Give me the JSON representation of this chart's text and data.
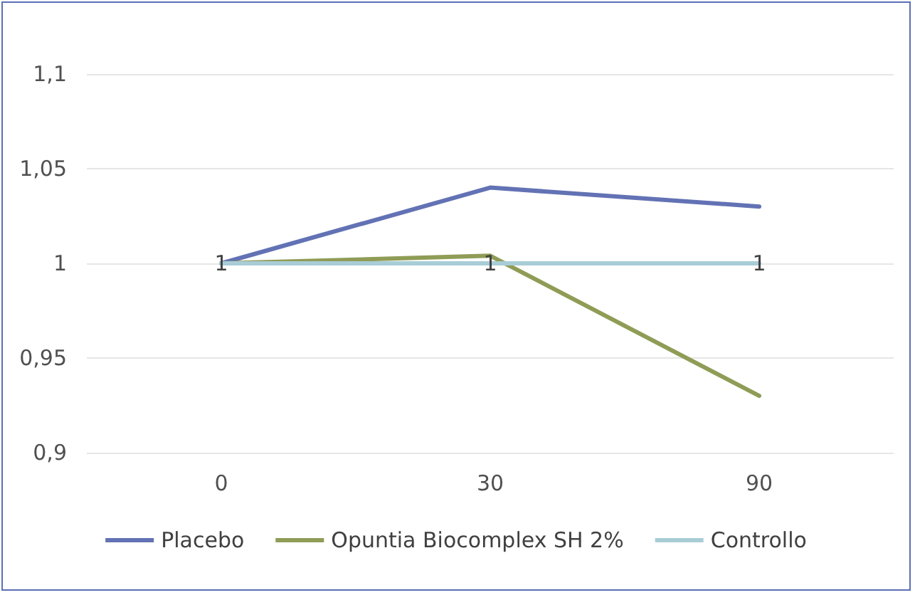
{
  "chart_data": {
    "type": "line",
    "categories": [
      "0",
      "30",
      "90"
    ],
    "series": [
      {
        "name": "Placebo",
        "color": "#6272b4",
        "values": [
          1,
          1.04,
          1.03
        ]
      },
      {
        "name": "Opuntia Biocomplex SH 2%",
        "color": "#8f9c56",
        "values": [
          1,
          1.004,
          0.93
        ]
      },
      {
        "name": "Controllo",
        "color": "#a8cdd6",
        "values": [
          1,
          1,
          1
        ],
        "value_labels": [
          "1",
          "1",
          "1"
        ]
      }
    ],
    "ylim": [
      0.9,
      1.1
    ],
    "yticks": [
      {
        "value": 0.9,
        "label": "0,9"
      },
      {
        "value": 0.95,
        "label": "0,95"
      },
      {
        "value": 1,
        "label": "1"
      },
      {
        "value": 1.05,
        "label": "1,05"
      },
      {
        "value": 1.1,
        "label": "1,1"
      }
    ],
    "grid": "y",
    "legend": "bottom",
    "marker": "none",
    "line_style": "solid"
  }
}
